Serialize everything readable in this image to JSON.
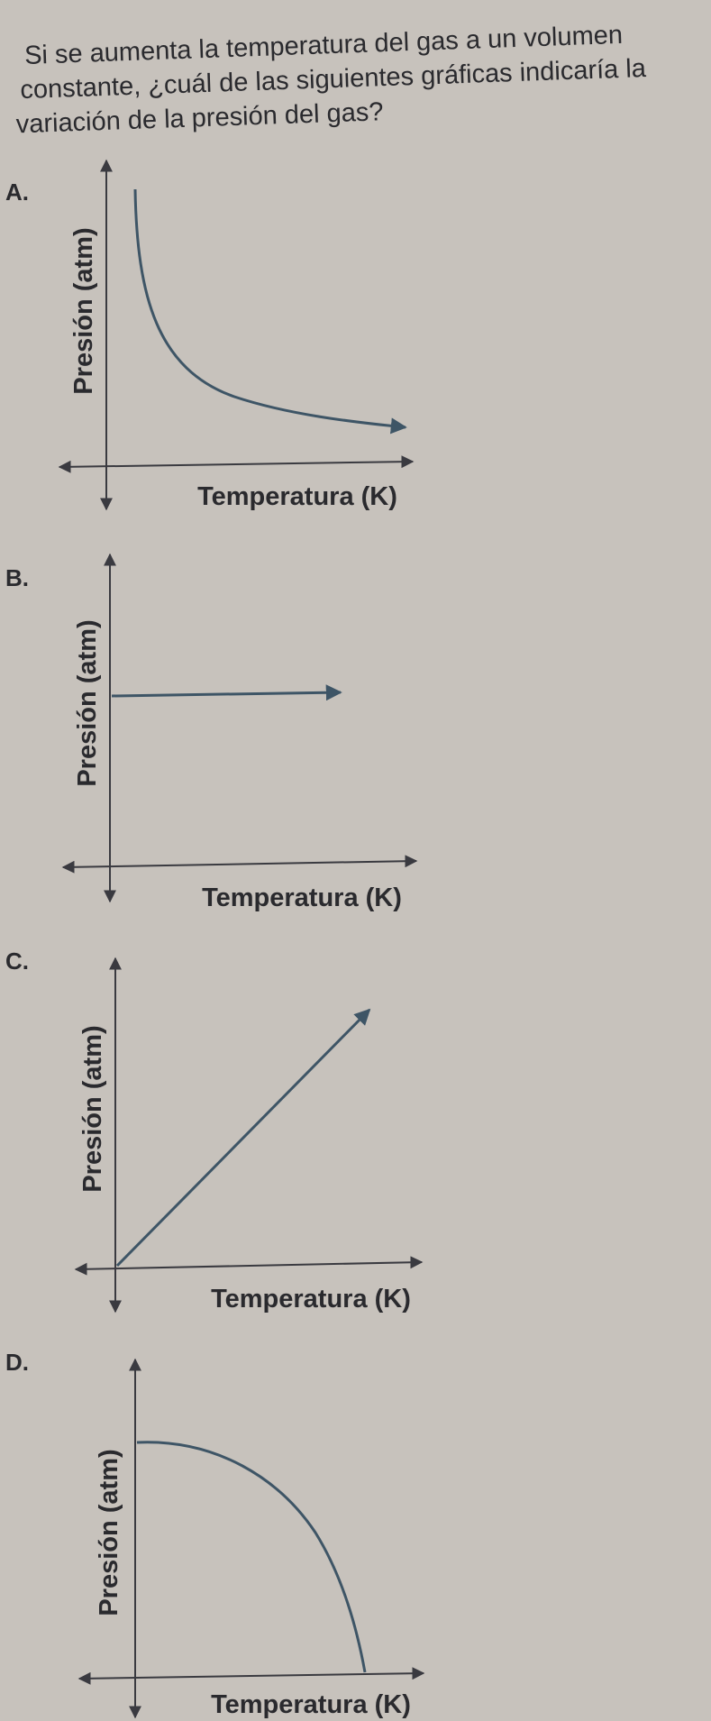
{
  "question": {
    "lines": [
      "Si se aumenta la temperatura del gas a un volumen",
      "constante, ¿cuál de las siguientes gráficas indicaría la",
      "variación de la presión del gas?"
    ]
  },
  "options": [
    {
      "letter": "A.",
      "y_label": "Presión (atm)",
      "x_label": "Temperatura (K)"
    },
    {
      "letter": "B.",
      "y_label": "Presión (atm)",
      "x_label": "Temperatura (K)"
    },
    {
      "letter": "C.",
      "y_label": "Presión (atm)",
      "x_label": "Temperatura (K)"
    },
    {
      "letter": "D.",
      "y_label": "Presión (atm)",
      "x_label": "Temperatura (K)"
    }
  ]
}
